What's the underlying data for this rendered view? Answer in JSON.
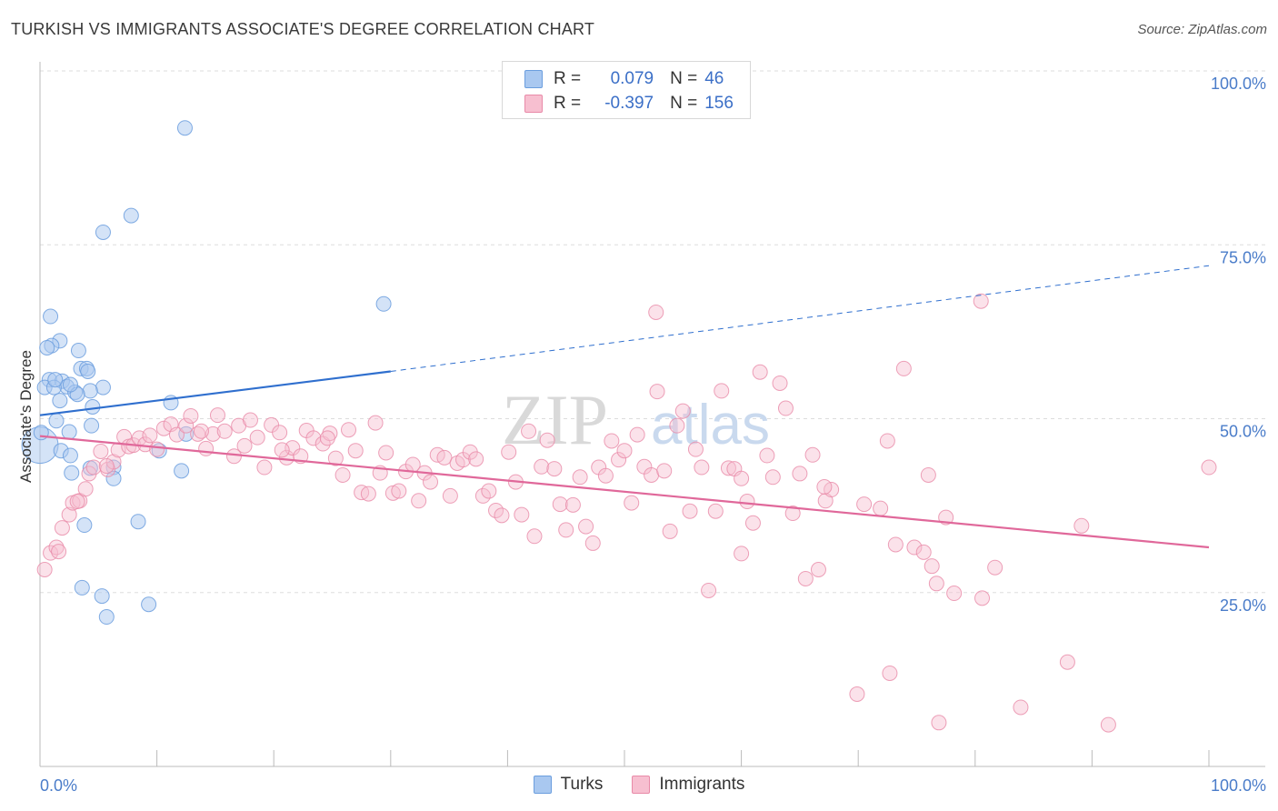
{
  "header": {
    "title": "TURKISH VS IMMIGRANTS ASSOCIATE'S DEGREE CORRELATION CHART",
    "source": "Source: ZipAtlas.com"
  },
  "legend": {
    "rows": [
      {
        "r_label": "R =",
        "r_value": "0.079",
        "n_label": "N =",
        "n_value": "46",
        "color": "#a9c8f0",
        "border": "#6b9ede"
      },
      {
        "r_label": "R =",
        "r_value": "-0.397",
        "n_label": "N =",
        "n_value": "156",
        "color": "#f7bfd0",
        "border": "#e88aa8"
      }
    ]
  },
  "bottom_legend": [
    {
      "label": "Turks",
      "color": "#a9c8f0",
      "border": "#6b9ede"
    },
    {
      "label": "Immigrants",
      "color": "#f7bfd0",
      "border": "#e88aa8"
    }
  ],
  "watermark": {
    "zip": "ZIP",
    "atlas": "atlas"
  },
  "chart_data": {
    "type": "scatter",
    "ylabel": "Associate's Degree",
    "xlim": [
      0,
      100
    ],
    "ylim": [
      0,
      100
    ],
    "x_tick_labels": [
      "0.0%",
      "100.0%"
    ],
    "y_ticks": [
      {
        "value": 25,
        "label": "25.0%"
      },
      {
        "value": 50,
        "label": "50.0%"
      },
      {
        "value": 75,
        "label": "75.0%"
      },
      {
        "value": 100,
        "label": "100.0%"
      }
    ],
    "colors": {
      "turks": "#6b9ede",
      "turks_fill": "#a9c8f0",
      "immigrants": "#e88aa8",
      "immigrants_fill": "#f7bfd0",
      "turks_line": "#2f6fce",
      "immigrants_line": "#e0689a"
    },
    "series": [
      {
        "name": "Turks",
        "points": [
          [
            12.4,
            91.8
          ],
          [
            7.8,
            79.2
          ],
          [
            5.4,
            76.8
          ],
          [
            29.4,
            66.5
          ],
          [
            0.9,
            64.7
          ],
          [
            1.7,
            61.2
          ],
          [
            1.0,
            60.5
          ],
          [
            0.6,
            60.2
          ],
          [
            3.3,
            59.8
          ],
          [
            3.5,
            57.2
          ],
          [
            4.0,
            57.2
          ],
          [
            4.1,
            56.8
          ],
          [
            0.8,
            55.6
          ],
          [
            1.9,
            55.4
          ],
          [
            2.3,
            54.6
          ],
          [
            0.4,
            54.5
          ],
          [
            1.2,
            54.5
          ],
          [
            5.4,
            54.5
          ],
          [
            4.3,
            54.0
          ],
          [
            3.0,
            53.8
          ],
          [
            3.2,
            53.5
          ],
          [
            1.7,
            52.6
          ],
          [
            11.2,
            52.3
          ],
          [
            4.5,
            51.7
          ],
          [
            1.4,
            49.7
          ],
          [
            4.4,
            49.0
          ],
          [
            2.5,
            48.1
          ],
          [
            12.5,
            47.8
          ],
          [
            0.0,
            46.2
          ],
          [
            1.8,
            45.4
          ],
          [
            2.6,
            44.7
          ],
          [
            10.2,
            45.4
          ],
          [
            4.3,
            42.9
          ],
          [
            6.3,
            43.0
          ],
          [
            12.1,
            42.5
          ],
          [
            2.7,
            42.2
          ],
          [
            6.3,
            41.4
          ],
          [
            3.8,
            34.7
          ],
          [
            8.4,
            35.2
          ],
          [
            3.6,
            25.7
          ],
          [
            5.3,
            24.5
          ],
          [
            9.3,
            23.3
          ],
          [
            5.7,
            21.5
          ],
          [
            0.1,
            48.0
          ],
          [
            2.6,
            54.9
          ],
          [
            1.3,
            55.6
          ]
        ],
        "trend": {
          "x0": 0,
          "y0": 50.5,
          "x1": 30,
          "y1": 56.8,
          "dashed_to_x": 100,
          "dashed_to_y": 72.0
        }
      },
      {
        "name": "Immigrants",
        "points": [
          [
            0.4,
            28.3
          ],
          [
            0.9,
            30.7
          ],
          [
            1.4,
            31.5
          ],
          [
            1.9,
            34.3
          ],
          [
            2.5,
            36.2
          ],
          [
            2.8,
            37.9
          ],
          [
            3.4,
            38.2
          ],
          [
            3.9,
            39.9
          ],
          [
            4.2,
            42.1
          ],
          [
            4.6,
            43.0
          ],
          [
            5.2,
            45.3
          ],
          [
            5.8,
            42.7
          ],
          [
            6.3,
            43.8
          ],
          [
            6.7,
            45.5
          ],
          [
            7.2,
            47.4
          ],
          [
            7.6,
            46.0
          ],
          [
            8.0,
            46.2
          ],
          [
            8.5,
            47.2
          ],
          [
            9.0,
            46.3
          ],
          [
            9.4,
            47.6
          ],
          [
            10.0,
            45.6
          ],
          [
            10.6,
            48.6
          ],
          [
            11.2,
            49.2
          ],
          [
            11.7,
            47.7
          ],
          [
            12.5,
            49.0
          ],
          [
            12.9,
            50.4
          ],
          [
            13.5,
            47.8
          ],
          [
            14.2,
            45.7
          ],
          [
            14.8,
            47.8
          ],
          [
            15.2,
            50.5
          ],
          [
            15.8,
            48.2
          ],
          [
            16.6,
            44.6
          ],
          [
            17.0,
            49.0
          ],
          [
            17.5,
            46.1
          ],
          [
            18.0,
            49.8
          ],
          [
            18.6,
            47.3
          ],
          [
            19.2,
            43.0
          ],
          [
            19.8,
            49.1
          ],
          [
            20.5,
            48.0
          ],
          [
            21.1,
            44.4
          ],
          [
            21.6,
            45.8
          ],
          [
            22.3,
            44.6
          ],
          [
            22.8,
            48.3
          ],
          [
            23.4,
            47.2
          ],
          [
            24.2,
            46.4
          ],
          [
            24.8,
            47.9
          ],
          [
            25.3,
            44.3
          ],
          [
            25.9,
            41.9
          ],
          [
            26.4,
            48.4
          ],
          [
            27.0,
            45.4
          ],
          [
            27.5,
            39.4
          ],
          [
            28.1,
            39.2
          ],
          [
            28.7,
            49.4
          ],
          [
            29.1,
            42.2
          ],
          [
            29.6,
            45.1
          ],
          [
            30.2,
            39.3
          ],
          [
            30.7,
            39.6
          ],
          [
            31.3,
            42.4
          ],
          [
            31.9,
            43.4
          ],
          [
            32.4,
            38.2
          ],
          [
            32.9,
            42.2
          ],
          [
            33.4,
            40.9
          ],
          [
            34.0,
            44.8
          ],
          [
            34.6,
            44.4
          ],
          [
            35.1,
            38.9
          ],
          [
            35.7,
            43.6
          ],
          [
            36.2,
            44.1
          ],
          [
            36.8,
            45.2
          ],
          [
            37.3,
            44.2
          ],
          [
            37.9,
            38.9
          ],
          [
            38.4,
            39.6
          ],
          [
            39.0,
            36.8
          ],
          [
            39.5,
            36.1
          ],
          [
            40.1,
            45.2
          ],
          [
            40.7,
            40.9
          ],
          [
            41.2,
            36.2
          ],
          [
            41.8,
            48.2
          ],
          [
            42.3,
            33.1
          ],
          [
            42.9,
            43.1
          ],
          [
            43.4,
            46.9
          ],
          [
            44.0,
            42.8
          ],
          [
            44.5,
            37.7
          ],
          [
            45.0,
            34.0
          ],
          [
            45.6,
            37.6
          ],
          [
            46.2,
            41.6
          ],
          [
            46.7,
            34.5
          ],
          [
            47.3,
            32.1
          ],
          [
            47.8,
            43.0
          ],
          [
            48.4,
            41.8
          ],
          [
            48.9,
            46.8
          ],
          [
            49.5,
            44.1
          ],
          [
            50.0,
            45.4
          ],
          [
            50.6,
            37.9
          ],
          [
            51.1,
            47.7
          ],
          [
            51.7,
            43.1
          ],
          [
            52.3,
            41.9
          ],
          [
            52.8,
            53.9
          ],
          [
            53.4,
            42.5
          ],
          [
            53.9,
            33.8
          ],
          [
            54.5,
            49.0
          ],
          [
            55.0,
            51.1
          ],
          [
            55.6,
            36.7
          ],
          [
            56.1,
            45.6
          ],
          [
            56.6,
            43.0
          ],
          [
            57.2,
            25.3
          ],
          [
            57.8,
            36.7
          ],
          [
            58.3,
            54.0
          ],
          [
            58.9,
            42.9
          ],
          [
            59.4,
            42.8
          ],
          [
            60.0,
            41.4
          ],
          [
            60.5,
            38.1
          ],
          [
            61.0,
            35.0
          ],
          [
            61.6,
            56.7
          ],
          [
            62.2,
            44.7
          ],
          [
            62.7,
            41.6
          ],
          [
            63.3,
            55.1
          ],
          [
            63.8,
            51.5
          ],
          [
            64.4,
            36.4
          ],
          [
            65.0,
            42.1
          ],
          [
            65.5,
            27.0
          ],
          [
            66.1,
            44.8
          ],
          [
            66.6,
            28.3
          ],
          [
            67.2,
            38.2
          ],
          [
            67.7,
            39.8
          ],
          [
            67.1,
            40.2
          ],
          [
            52.7,
            65.3
          ],
          [
            80.5,
            66.9
          ],
          [
            73.9,
            57.2
          ],
          [
            72.5,
            46.8
          ],
          [
            70.5,
            37.7
          ],
          [
            71.9,
            37.1
          ],
          [
            73.2,
            31.9
          ],
          [
            74.8,
            31.5
          ],
          [
            75.6,
            30.8
          ],
          [
            76.3,
            28.8
          ],
          [
            76.7,
            26.3
          ],
          [
            77.5,
            35.8
          ],
          [
            78.2,
            24.9
          ],
          [
            80.6,
            24.2
          ],
          [
            81.7,
            28.6
          ],
          [
            72.7,
            13.4
          ],
          [
            69.9,
            10.4
          ],
          [
            76.9,
            6.3
          ],
          [
            83.9,
            8.5
          ],
          [
            87.9,
            15.0
          ],
          [
            89.1,
            34.6
          ],
          [
            91.4,
            6.0
          ],
          [
            100.0,
            43.0
          ],
          [
            76.0,
            41.9
          ],
          [
            60.0,
            30.6
          ],
          [
            1.6,
            30.9
          ],
          [
            3.2,
            38.1
          ],
          [
            5.7,
            43.2
          ],
          [
            13.8,
            48.2
          ],
          [
            20.7,
            45.5
          ],
          [
            24.6,
            47.2
          ]
        ],
        "trend": {
          "x0": 0,
          "y0": 47.5,
          "x1": 100,
          "y1": 31.5
        }
      }
    ]
  }
}
